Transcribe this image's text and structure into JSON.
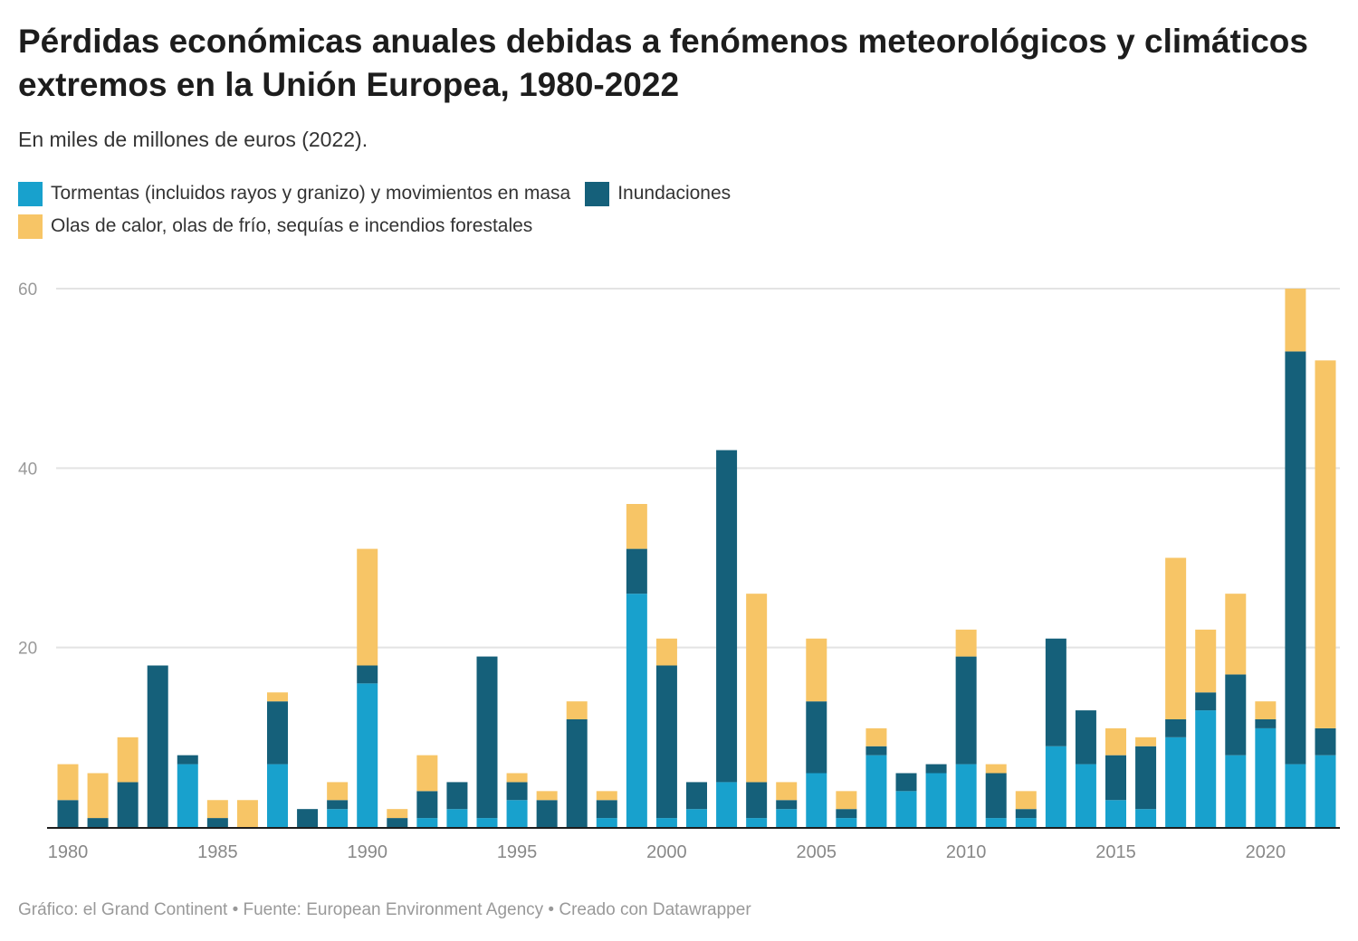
{
  "chart_data": {
    "type": "bar",
    "stacked": true,
    "title": "Pérdidas económicas anuales debidas a fenómenos meteorológicos y climáticos extremos en la Unión Europea, 1980-2022",
    "subtitle": "En miles de millones de euros (2022).",
    "xlabel": "",
    "ylabel": "",
    "ylim": [
      0,
      60
    ],
    "yticks": [
      20,
      40,
      60
    ],
    "xticks": [
      1980,
      1985,
      1990,
      1995,
      2000,
      2005,
      2010,
      2015,
      2020
    ],
    "grid": true,
    "legend_position": "top-left",
    "categories": [
      1980,
      1981,
      1982,
      1983,
      1984,
      1985,
      1986,
      1987,
      1988,
      1989,
      1990,
      1991,
      1992,
      1993,
      1994,
      1995,
      1996,
      1997,
      1998,
      1999,
      2000,
      2001,
      2002,
      2003,
      2004,
      2005,
      2006,
      2007,
      2008,
      2009,
      2010,
      2011,
      2012,
      2013,
      2014,
      2015,
      2016,
      2017,
      2018,
      2019,
      2020,
      2021,
      2022
    ],
    "series": [
      {
        "name": "Tormentas (incluidos rayos y granizo) y movimientos en masa",
        "color": "#18a1cd",
        "values": [
          0,
          0,
          0,
          0,
          7,
          0,
          0,
          7,
          0,
          2,
          16,
          0,
          1,
          2,
          1,
          3,
          0,
          0,
          1,
          26,
          1,
          2,
          5,
          1,
          2,
          6,
          1,
          8,
          4,
          6,
          7,
          1,
          1,
          9,
          7,
          3,
          2,
          10,
          13,
          8,
          11,
          7,
          8
        ]
      },
      {
        "name": "Inundaciones",
        "color": "#15607a",
        "values": [
          3,
          1,
          5,
          18,
          1,
          1,
          0,
          7,
          2,
          1,
          2,
          1,
          3,
          3,
          18,
          2,
          3,
          12,
          2,
          5,
          17,
          3,
          37,
          4,
          1,
          8,
          1,
          1,
          2,
          1,
          12,
          5,
          1,
          12,
          6,
          5,
          7,
          2,
          2,
          9,
          1,
          46,
          3
        ]
      },
      {
        "name": "Olas de calor, olas de frío, sequías e incendios forestales",
        "color": "#f7c566",
        "values": [
          4,
          5,
          5,
          0,
          0,
          2,
          3,
          1,
          0,
          2,
          13,
          1,
          4,
          0,
          0,
          1,
          1,
          2,
          1,
          5,
          3,
          0,
          0,
          21,
          2,
          7,
          2,
          2,
          0,
          0,
          3,
          1,
          2,
          0,
          0,
          3,
          1,
          18,
          7,
          9,
          2,
          7,
          41
        ]
      }
    ]
  },
  "footer": "Gráfico: el Grand Continent • Fuente: European Environment Agency • Creado con Datawrapper"
}
